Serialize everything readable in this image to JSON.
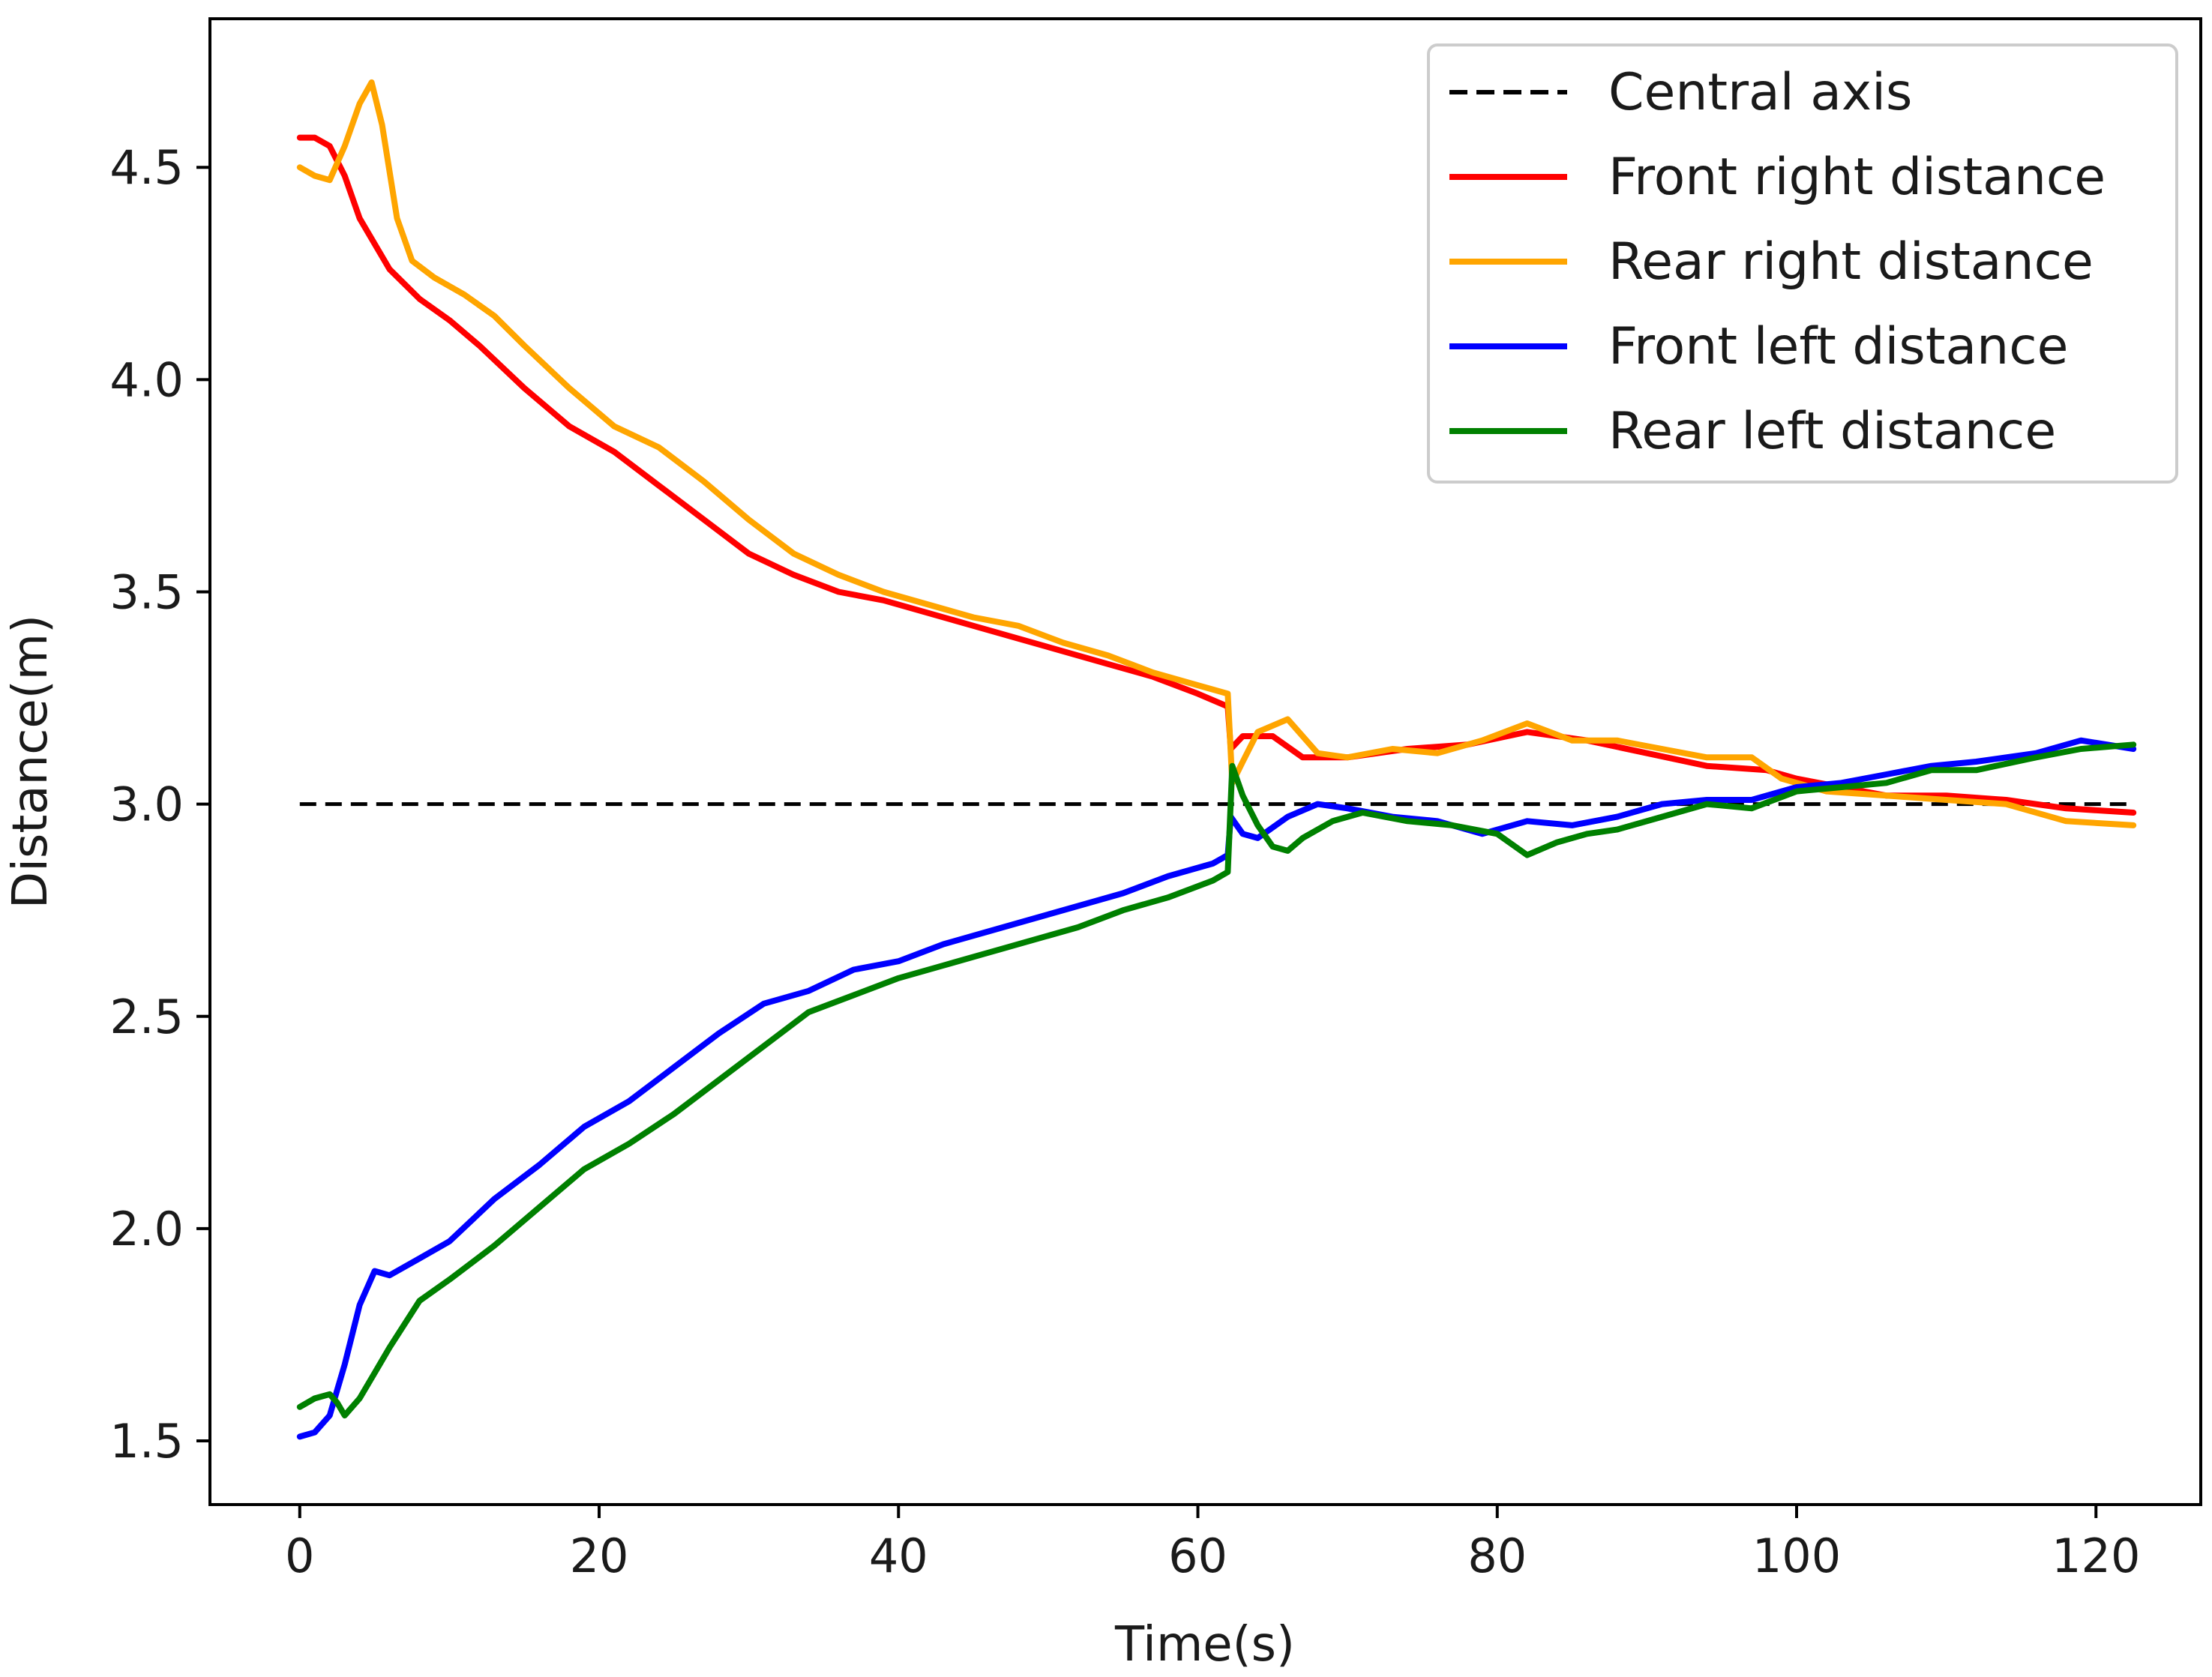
{
  "chart_data": {
    "type": "line",
    "title": "",
    "xlabel": "Time(s)",
    "ylabel": "Distance(m)",
    "xlim": [
      -6,
      127
    ],
    "ylim": [
      1.35,
      4.85
    ],
    "xticks": [
      0,
      20,
      40,
      60,
      80,
      100,
      120
    ],
    "yticks": [
      1.5,
      2.0,
      2.5,
      3.0,
      3.5,
      4.0,
      4.5
    ],
    "xtick_labels": [
      "0",
      "20",
      "40",
      "60",
      "80",
      "100",
      "120"
    ],
    "ytick_labels": [
      "1.5",
      "2.0",
      "2.5",
      "3.0",
      "3.5",
      "4.0",
      "4.5"
    ],
    "grid": false,
    "legend_position": "upper-right",
    "series": [
      {
        "name": "Central axis",
        "color": "#000000",
        "style": "dashed",
        "x": [
          0,
          122.5
        ],
        "y": [
          3.0,
          3.0
        ]
      },
      {
        "name": "Front right distance",
        "color": "#ff0000",
        "style": "solid",
        "x": [
          0,
          1,
          2,
          3,
          4,
          6,
          8,
          10,
          12,
          15,
          18,
          21,
          24,
          27,
          30,
          33,
          36,
          39,
          42,
          45,
          48,
          51,
          54,
          57,
          60,
          62,
          62.2,
          63,
          65,
          67,
          70,
          74,
          78,
          82,
          86,
          90,
          94,
          98,
          100,
          103,
          106,
          110,
          114,
          118,
          122.5
        ],
        "y": [
          4.57,
          4.57,
          4.55,
          4.48,
          4.38,
          4.26,
          4.19,
          4.14,
          4.08,
          3.98,
          3.89,
          3.83,
          3.75,
          3.67,
          3.59,
          3.54,
          3.5,
          3.48,
          3.45,
          3.42,
          3.39,
          3.36,
          3.33,
          3.3,
          3.26,
          3.23,
          3.13,
          3.16,
          3.16,
          3.11,
          3.11,
          3.13,
          3.14,
          3.17,
          3.15,
          3.12,
          3.09,
          3.08,
          3.06,
          3.04,
          3.02,
          3.02,
          3.01,
          2.99,
          2.98
        ]
      },
      {
        "name": "Rear right distance",
        "color": "#ffa500",
        "style": "solid",
        "x": [
          0,
          1,
          2,
          3,
          4,
          4.8,
          5.5,
          6.5,
          7.5,
          9,
          11,
          13,
          15,
          18,
          21,
          24,
          27,
          30,
          33,
          36,
          39,
          42,
          45,
          48,
          51,
          54,
          57,
          60,
          62,
          62.3,
          63,
          64,
          66,
          68,
          70,
          73,
          76,
          79,
          82,
          85,
          88,
          91,
          94,
          97,
          99,
          102,
          106,
          110,
          114,
          118,
          122.5
        ],
        "y": [
          4.5,
          4.48,
          4.47,
          4.55,
          4.65,
          4.7,
          4.6,
          4.38,
          4.28,
          4.24,
          4.2,
          4.15,
          4.08,
          3.98,
          3.89,
          3.84,
          3.76,
          3.67,
          3.59,
          3.54,
          3.5,
          3.47,
          3.44,
          3.42,
          3.38,
          3.35,
          3.31,
          3.28,
          3.26,
          3.05,
          3.1,
          3.17,
          3.2,
          3.12,
          3.11,
          3.13,
          3.12,
          3.15,
          3.19,
          3.15,
          3.15,
          3.13,
          3.11,
          3.11,
          3.06,
          3.03,
          3.02,
          3.01,
          3.0,
          2.96,
          2.95
        ]
      },
      {
        "name": "Front left distance",
        "color": "#0000ff",
        "style": "solid",
        "x": [
          0,
          1,
          2,
          3,
          4,
          5,
          6,
          8,
          10,
          13,
          16,
          19,
          22,
          25,
          28,
          31,
          34,
          37,
          40,
          43,
          46,
          49,
          52,
          55,
          58,
          61,
          62,
          62.2,
          63,
          64,
          66,
          68,
          70,
          73,
          76,
          79,
          82,
          85,
          88,
          91,
          94,
          97,
          100,
          103,
          106,
          109,
          112,
          116,
          119,
          122.5
        ],
        "y": [
          1.51,
          1.52,
          1.56,
          1.68,
          1.82,
          1.9,
          1.89,
          1.93,
          1.97,
          2.07,
          2.15,
          2.24,
          2.3,
          2.38,
          2.46,
          2.53,
          2.56,
          2.61,
          2.63,
          2.67,
          2.7,
          2.73,
          2.76,
          2.79,
          2.83,
          2.86,
          2.88,
          2.97,
          2.93,
          2.92,
          2.97,
          3.0,
          2.99,
          2.97,
          2.96,
          2.93,
          2.96,
          2.95,
          2.97,
          3.0,
          3.01,
          3.01,
          3.04,
          3.05,
          3.07,
          3.09,
          3.1,
          3.12,
          3.15,
          3.13
        ]
      },
      {
        "name": "Rear left distance",
        "color": "#008000",
        "style": "solid",
        "x": [
          0,
          1,
          2,
          2.5,
          3,
          4,
          5,
          6,
          8,
          10,
          13,
          16,
          19,
          22,
          25,
          28,
          31,
          34,
          37,
          40,
          43,
          46,
          49,
          52,
          55,
          58,
          61,
          62,
          62.3,
          63,
          64,
          65,
          66,
          67,
          69,
          71,
          74,
          77,
          80,
          82,
          84,
          86,
          88,
          91,
          94,
          97,
          100,
          103,
          106,
          109,
          112,
          116,
          119,
          122.5
        ],
        "y": [
          1.58,
          1.6,
          1.61,
          1.59,
          1.56,
          1.6,
          1.66,
          1.72,
          1.83,
          1.88,
          1.96,
          2.05,
          2.14,
          2.2,
          2.27,
          2.35,
          2.43,
          2.51,
          2.55,
          2.59,
          2.62,
          2.65,
          2.68,
          2.71,
          2.75,
          2.78,
          2.82,
          2.84,
          3.09,
          3.02,
          2.95,
          2.9,
          2.89,
          2.92,
          2.96,
          2.98,
          2.96,
          2.95,
          2.93,
          2.88,
          2.91,
          2.93,
          2.94,
          2.97,
          3.0,
          2.99,
          3.03,
          3.04,
          3.05,
          3.08,
          3.08,
          3.11,
          3.13,
          3.14
        ]
      }
    ]
  }
}
